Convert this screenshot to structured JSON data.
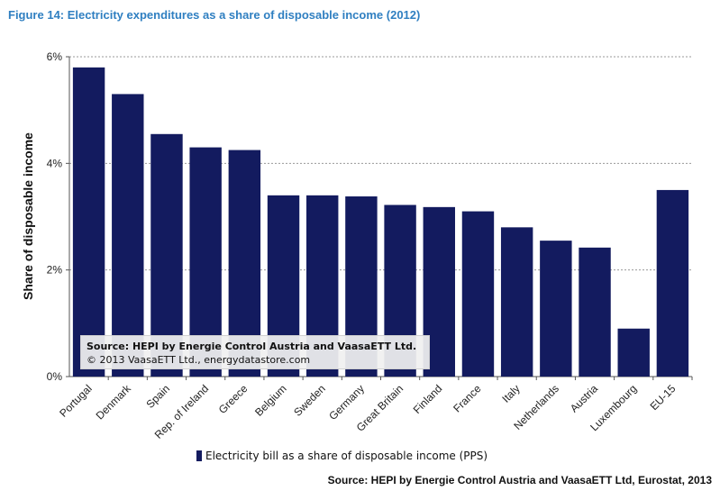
{
  "figure_title": "Figure 14: Electricity expenditures as a share of disposable income (2012)",
  "chart_data": {
    "type": "bar",
    "categories": [
      "Portugal",
      "Denmark",
      "Spain",
      "Rep. of Ireland",
      "Greece",
      "Belgium",
      "Sweden",
      "Germany",
      "Great Britain",
      "Finland",
      "France",
      "Italy",
      "Netherlands",
      "Austria",
      "Luxembourg",
      "EU-15"
    ],
    "series": [
      {
        "name": "Electricity bill as a share of disposable income (PPS)",
        "values": [
          5.8,
          5.3,
          4.55,
          4.3,
          4.25,
          3.4,
          3.4,
          3.38,
          3.22,
          3.18,
          3.1,
          2.8,
          2.55,
          2.42,
          0.9,
          3.5
        ]
      }
    ],
    "ylabel": "Share of disposable income",
    "ylim": [
      0,
      6
    ],
    "yticks": [
      "0%",
      "2%",
      "4%",
      "6%"
    ],
    "grid": true,
    "legend_position": "bottom",
    "bar_color": "#131b5f"
  },
  "source_box": {
    "line1": "Source: HEPI by Energie Control Austria and VaasaETT Ltd.",
    "line2": "© 2013 VaasaETT Ltd., energydatastore.com"
  },
  "footer_source": "Source: HEPI by Energie Control Austria and VaasaETT Ltd, Eurostat, 2013"
}
